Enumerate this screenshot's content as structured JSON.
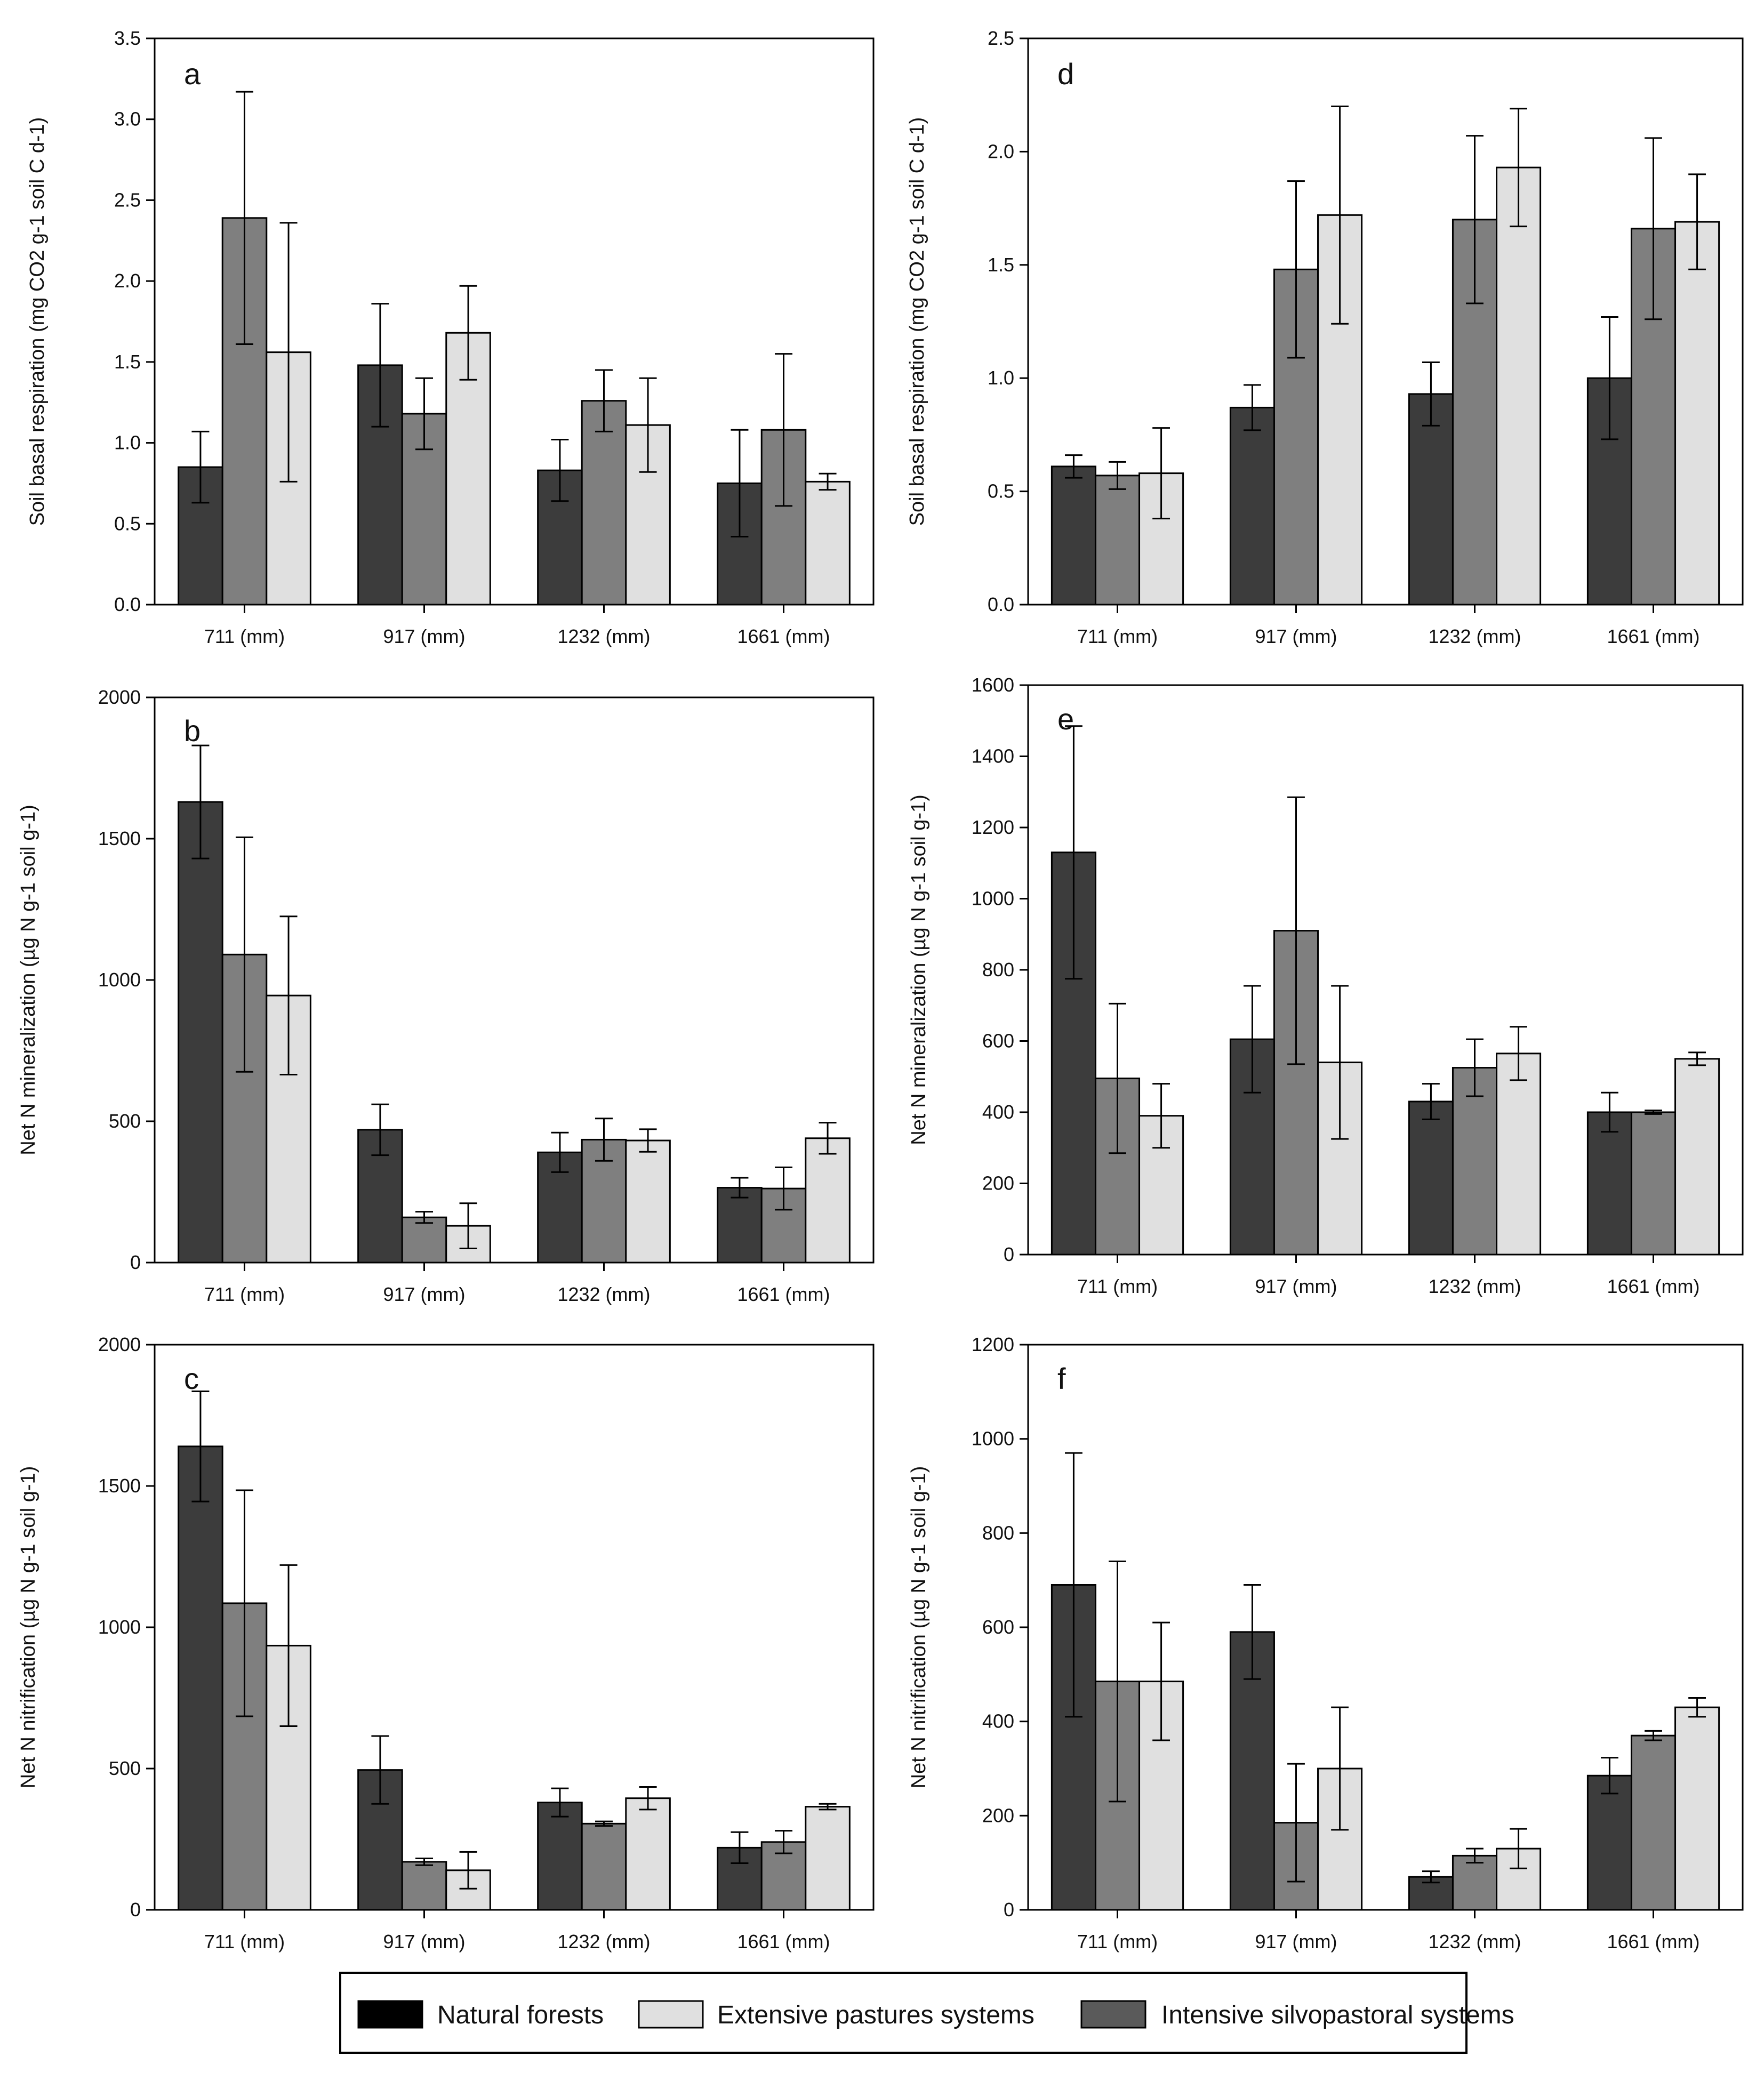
{
  "legend": {
    "items": [
      {
        "label": "Natural forests",
        "color": "#000000"
      },
      {
        "label": "Extensive pastures systems",
        "color": "#e0e0e0"
      },
      {
        "label": "Intensive silvopastoral systems",
        "color": "#5a5a5a"
      }
    ]
  },
  "colors": {
    "natural_forests_bar": "#3c3c3c",
    "intensive_silvopastoral_bar": "#7f7f7f",
    "extensive_pastures_bar": "#e0e0e0",
    "axis": "#000000"
  },
  "chart_data": [
    {
      "panel": "a",
      "type": "bar",
      "ylabel": "Soil basal respiration (mg CO2 g-1 soil C d-1)",
      "categories": [
        "711 (mm)",
        "917 (mm)",
        "1232 (mm)",
        "1661 (mm)"
      ],
      "ylim": [
        0,
        3.5
      ],
      "yticks": [
        0,
        0.5,
        1.0,
        1.5,
        2.0,
        2.5,
        3.0,
        3.5
      ],
      "tick_decimals": 1,
      "series": [
        {
          "name": "Natural forests",
          "values": [
            0.85,
            1.48,
            0.83,
            0.75
          ],
          "errors": [
            0.22,
            0.38,
            0.19,
            0.33
          ]
        },
        {
          "name": "Intensive silvopastoral systems",
          "values": [
            2.39,
            1.18,
            1.26,
            1.08
          ],
          "errors": [
            0.78,
            0.22,
            0.19,
            0.47
          ]
        },
        {
          "name": "Extensive pastures systems",
          "values": [
            1.56,
            1.68,
            1.11,
            0.76
          ],
          "errors": [
            0.8,
            0.29,
            0.29,
            0.05
          ]
        }
      ]
    },
    {
      "panel": "b",
      "type": "bar",
      "ylabel": "Net N mineralization (µg N g-1 soil g-1)",
      "categories": [
        "711 (mm)",
        "917 (mm)",
        "1232 (mm)",
        "1661 (mm)"
      ],
      "ylim": [
        0,
        2000
      ],
      "yticks": [
        0,
        500,
        1000,
        1500,
        2000
      ],
      "tick_decimals": 0,
      "series": [
        {
          "name": "Natural forests",
          "values": [
            1630,
            470,
            390,
            265
          ],
          "errors": [
            200,
            90,
            70,
            35
          ]
        },
        {
          "name": "Intensive silvopastoral systems",
          "values": [
            1090,
            160,
            435,
            262
          ],
          "errors": [
            415,
            20,
            75,
            75
          ]
        },
        {
          "name": "Extensive pastures systems",
          "values": [
            945,
            130,
            432,
            440
          ],
          "errors": [
            280,
            80,
            40,
            55
          ]
        }
      ]
    },
    {
      "panel": "c",
      "type": "bar",
      "ylabel": "Net N nitrification (µg N g-1 soil g-1)",
      "categories": [
        "711 (mm)",
        "917 (mm)",
        "1232 (mm)",
        "1661 (mm)"
      ],
      "ylim": [
        0,
        2000
      ],
      "yticks": [
        0,
        500,
        1000,
        1500,
        2000
      ],
      "tick_decimals": 0,
      "series": [
        {
          "name": "Natural forests",
          "values": [
            1640,
            495,
            380,
            220
          ],
          "errors": [
            195,
            120,
            50,
            55
          ]
        },
        {
          "name": "Intensive silvopastoral systems",
          "values": [
            1085,
            170,
            305,
            240
          ],
          "errors": [
            400,
            12,
            8,
            40
          ]
        },
        {
          "name": "Extensive pastures systems",
          "values": [
            935,
            140,
            395,
            365
          ],
          "errors": [
            285,
            65,
            40,
            10
          ]
        }
      ]
    },
    {
      "panel": "d",
      "type": "bar",
      "ylabel": "Soil basal respiration (mg CO2 g-1 soil C d-1)",
      "categories": [
        "711 (mm)",
        "917 (mm)",
        "1232 (mm)",
        "1661 (mm)"
      ],
      "ylim": [
        0,
        2.5
      ],
      "yticks": [
        0,
        0.5,
        1.0,
        1.5,
        2.0,
        2.5
      ],
      "tick_decimals": 1,
      "series": [
        {
          "name": "Natural forests",
          "values": [
            0.61,
            0.87,
            0.93,
            1.0
          ],
          "errors": [
            0.05,
            0.1,
            0.14,
            0.27
          ]
        },
        {
          "name": "Intensive silvopastoral systems",
          "values": [
            0.57,
            1.48,
            1.7,
            1.66
          ],
          "errors": [
            0.06,
            0.39,
            0.37,
            0.4
          ]
        },
        {
          "name": "Extensive pastures systems",
          "values": [
            0.58,
            1.72,
            1.93,
            1.69
          ],
          "errors": [
            0.2,
            0.48,
            0.26,
            0.21
          ]
        }
      ]
    },
    {
      "panel": "e",
      "type": "bar",
      "ylabel": "Net N mineralization (µg N g-1 soil g-1)",
      "categories": [
        "711 (mm)",
        "917 (mm)",
        "1232 (mm)",
        "1661 (mm)"
      ],
      "ylim": [
        0,
        1600
      ],
      "yticks": [
        0,
        200,
        400,
        600,
        800,
        1000,
        1200,
        1400,
        1600
      ],
      "tick_decimals": 0,
      "series": [
        {
          "name": "Natural forests",
          "values": [
            1130,
            605,
            430,
            400
          ],
          "errors": [
            355,
            150,
            50,
            55
          ]
        },
        {
          "name": "Intensive silvopastoral systems",
          "values": [
            495,
            910,
            525,
            400
          ],
          "errors": [
            210,
            375,
            80,
            5
          ]
        },
        {
          "name": "Extensive pastures systems",
          "values": [
            390,
            540,
            565,
            550
          ],
          "errors": [
            90,
            215,
            75,
            18
          ]
        }
      ]
    },
    {
      "panel": "f",
      "type": "bar",
      "ylabel": "Net N nitrification (µg N g-1 soil g-1)",
      "categories": [
        "711 (mm)",
        "917 (mm)",
        "1232 (mm)",
        "1661 (mm)"
      ],
      "ylim": [
        0,
        1200
      ],
      "yticks": [
        0,
        200,
        400,
        600,
        800,
        1000,
        1200
      ],
      "tick_decimals": 0,
      "series": [
        {
          "name": "Natural forests",
          "values": [
            690,
            590,
            70,
            285
          ],
          "errors": [
            280,
            100,
            12,
            38
          ]
        },
        {
          "name": "Intensive silvopastoral systems",
          "values": [
            485,
            185,
            115,
            370
          ],
          "errors": [
            255,
            125,
            15,
            10
          ]
        },
        {
          "name": "Extensive pastures systems",
          "values": [
            485,
            300,
            130,
            430
          ],
          "errors": [
            125,
            130,
            42,
            20
          ]
        }
      ]
    }
  ]
}
